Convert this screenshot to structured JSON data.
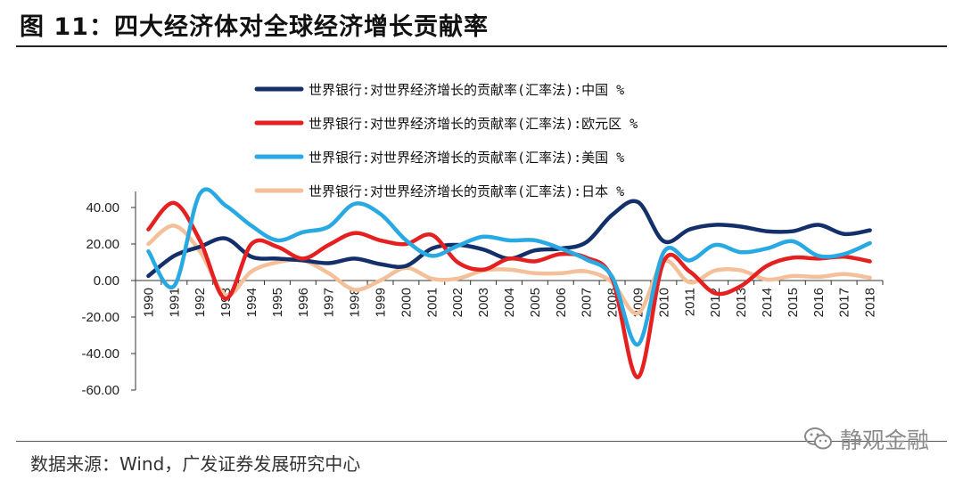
{
  "header": {
    "title": "图 11：四大经济体对全球经济增长贡献率"
  },
  "footer": {
    "source": "数据来源：Wind，广发证券发展研究中心",
    "watermark": "静观金融",
    "watermark_icon": "wechat-icon"
  },
  "chart_data": {
    "type": "line",
    "categories": [
      "1990",
      "1991",
      "1992",
      "1993",
      "1994",
      "1995",
      "1996",
      "1997",
      "1998",
      "1999",
      "2000",
      "2001",
      "2002",
      "2003",
      "2004",
      "2005",
      "2006",
      "2007",
      "2008",
      "2009",
      "2010",
      "2011",
      "2012",
      "2013",
      "2014",
      "2015",
      "2016",
      "2017",
      "2018"
    ],
    "y_ticks": [
      "40.00",
      "20.00",
      "0.00",
      "-20.00",
      "-40.00",
      "-60.00"
    ],
    "ylim": [
      -60,
      40
    ],
    "grid": false,
    "legend_position": "top",
    "series": [
      {
        "name": "世界银行:对世界经济增长的贡献率(汇率法):中国 %",
        "color": "#14306b",
        "values": [
          2.5,
          13.5,
          18.5,
          23.0,
          13.0,
          12.0,
          11.0,
          9.5,
          12.0,
          9.0,
          8.0,
          17.5,
          19.5,
          17.0,
          12.0,
          16.5,
          17.5,
          21.0,
          36.0,
          43.0,
          21.5,
          28.0,
          30.5,
          29.5,
          27.0,
          27.0,
          30.5,
          25.5,
          27.5
        ]
      },
      {
        "name": "世界银行:对世界经济增长的贡献率(汇率法):欧元区 %",
        "color": "#e52020",
        "values": [
          28.0,
          42.5,
          22.0,
          -10.0,
          20.0,
          18.5,
          12.0,
          19.5,
          26.0,
          22.0,
          20.0,
          25.0,
          10.0,
          6.0,
          12.0,
          10.5,
          14.5,
          12.5,
          1.0,
          -53.0,
          10.5,
          5.0,
          -7.0,
          -3.0,
          8.0,
          12.5,
          12.0,
          13.0,
          10.5
        ]
      },
      {
        "name": "世界银行:对世界经济增长的贡献率(汇率法):美国 %",
        "color": "#28a9e1",
        "values": [
          16.0,
          -3.0,
          47.5,
          41.0,
          30.0,
          22.0,
          26.5,
          29.5,
          42.0,
          36.5,
          22.0,
          13.5,
          19.0,
          24.0,
          22.0,
          22.0,
          17.5,
          11.5,
          2.0,
          -35.0,
          15.5,
          11.0,
          19.5,
          15.5,
          17.5,
          21.5,
          13.5,
          14.5,
          20.5
        ]
      },
      {
        "name": "世界银行:对世界经济增长的贡献率(汇率法):日本 %",
        "color": "#f4c09a",
        "values": [
          20.0,
          30.0,
          16.0,
          -8.0,
          5.0,
          10.0,
          11.0,
          4.0,
          -5.0,
          0.0,
          7.0,
          1.0,
          1.0,
          5.5,
          6.0,
          4.0,
          4.0,
          5.0,
          -1.0,
          -18.0,
          10.5,
          -1.0,
          5.5,
          5.5,
          0.5,
          2.5,
          2.0,
          3.5,
          1.5
        ]
      }
    ]
  }
}
